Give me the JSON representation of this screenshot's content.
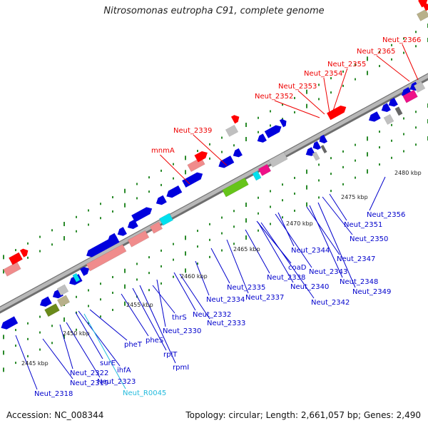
{
  "title": "Nitrosomonas eutropha C91, complete genome",
  "footer": {
    "accession": "Accession: NC_008344",
    "topology": "Topology: circular; Length: 2,661,057 bp; Genes: 2,490"
  },
  "colors": {
    "backbone": "#9a9a9a",
    "cds": "#0000dd",
    "rrna": "#f08c8c",
    "trna": "#00e0ee",
    "highlight": "#ff0000",
    "other": "#c0c0c0",
    "tick": "#2a8a2a",
    "label_top": "#ee0000",
    "label_bottom": "#0000cc",
    "label_cyan": "#22bbdd"
  },
  "scale_labels": [
    "2445 kbp",
    "2450 kbp",
    "2455 kbp",
    "2460 kbp",
    "2465 kbp",
    "2470 kbp",
    "2475 kbp",
    "2480 kbp"
  ],
  "top_labels": [
    "mnmA",
    "Neut_2339",
    "Neut_2352",
    "Neut_2353",
    "Neut_2354",
    "Neut_2355",
    "Neut_2365",
    "Neut_2366"
  ],
  "bottom_labels": [
    "Neut_2318",
    "Neut_2319",
    "Neut_2322",
    "Neut_2323",
    "surE",
    "ihfA",
    "Neut_R0045",
    "pheT",
    "pheS",
    "rplT",
    "rpmI",
    "thrS",
    "Neut_2330",
    "Neut_2332",
    "Neut_2333",
    "Neut_2334",
    "Neut_2335",
    "Neut_2337",
    "Neut_2338",
    "coaD",
    "Neut_2340",
    "Neut_2342",
    "Neut_2343",
    "Neut_2344",
    "Neut_2347",
    "Neut_2348",
    "Neut_2349",
    "Neut_2350",
    "Neut_2351",
    "Neut_2356"
  ]
}
